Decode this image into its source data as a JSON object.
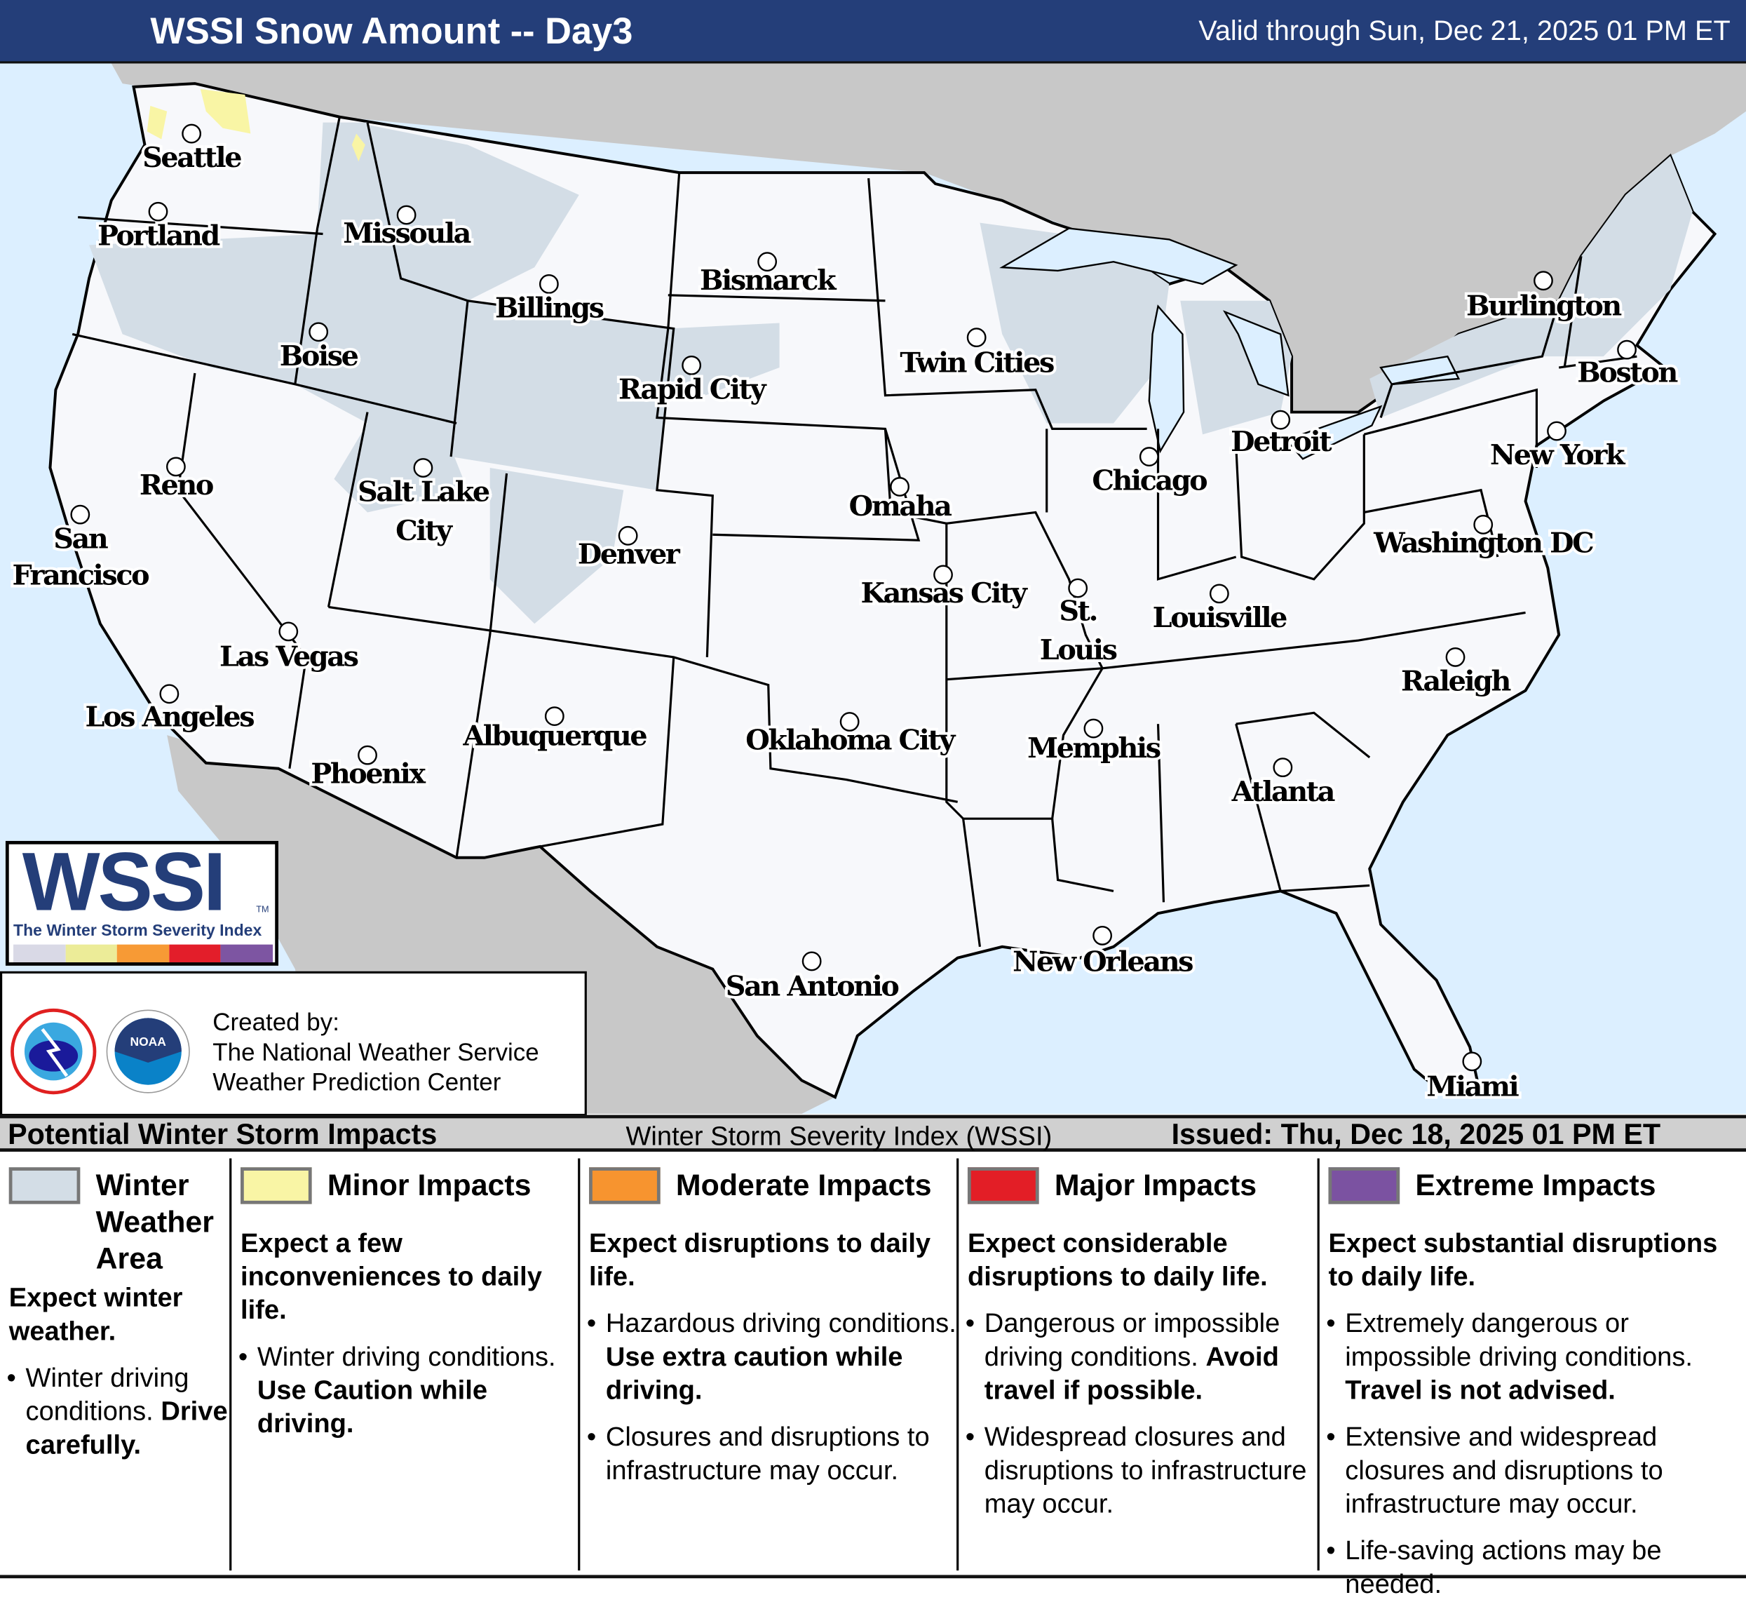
{
  "header": {
    "title": "WSSI Snow Amount -- Day3",
    "valid": "Valid through Sun, Dec 21, 2025 01 PM ET"
  },
  "colors": {
    "header_bg": "#243e79",
    "ocean": "#dcefff",
    "neighbor_land": "#c8c8c8",
    "us_land": "#f7f8fb",
    "winter_weather_area": "#d3dde6",
    "minor": "#f9f5a5",
    "moderate": "#f7942f",
    "major": "#e31e26",
    "extreme": "#7b52a1"
  },
  "cities": [
    "Seattle",
    "Portland",
    "Missoula",
    "Billings",
    "Bismarck",
    "Boise",
    "Rapid City",
    "Twin Cities",
    "Burlington",
    "Boston",
    "Reno",
    "Salt Lake City",
    "San Francisco",
    "Detroit",
    "New York",
    "Chicago",
    "Omaha",
    "Denver",
    "Washington DC",
    "Kansas City",
    "St. Louis",
    "Louisville",
    "Las Vegas",
    "Raleigh",
    "Los Angeles",
    "Oklahoma City",
    "Albuquerque",
    "Memphis",
    "Phoenix",
    "Atlanta",
    "New Orleans",
    "San Antonio",
    "Miami"
  ],
  "logo": {
    "wordmark": "WSSI",
    "tm": "TM",
    "subtitle": "The Winter Storm Severity Index",
    "bar_colors": [
      "#d9d9e6",
      "#ecec98",
      "#f79a35",
      "#e31e2a",
      "#7d55a2"
    ]
  },
  "credit": {
    "line1": "Created by:",
    "line2": "The National Weather Service",
    "line3": "Weather Prediction Center",
    "nws_logo_text": "NATIONAL WEATHER SERVICE",
    "noaa_logo_text": "NOAA"
  },
  "legend": {
    "title": "Potential Winter Storm Impacts",
    "subtitle": "Winter Storm Severity Index (WSSI)",
    "issued": "Issued: Thu, Dec 18, 2025 01 PM ET",
    "columns": [
      {
        "title": "Winter Weather Area",
        "color": "#d3dde6",
        "headline": "Expect winter weather.",
        "bullets": [
          {
            "text": "Winter driving conditions. ",
            "bold": "Drive carefully."
          }
        ]
      },
      {
        "title": "Minor Impacts",
        "color": "#f9f5a5",
        "headline": "Expect a few inconveniences to daily life.",
        "bullets": [
          {
            "text": "Winter driving conditions. ",
            "bold": "Use Caution while driving."
          }
        ]
      },
      {
        "title": "Moderate Impacts",
        "color": "#f7942f",
        "headline": "Expect disruptions to daily life.",
        "bullets": [
          {
            "text": "Hazardous driving conditions. ",
            "bold": "Use extra caution while driving."
          },
          {
            "text": "Closures and disruptions to infrastructure may occur.",
            "bold": ""
          }
        ]
      },
      {
        "title": "Major Impacts",
        "color": "#e31e26",
        "headline": "Expect considerable disruptions to daily life.",
        "bullets": [
          {
            "text": "Dangerous or impossible driving conditions. ",
            "bold": "Avoid travel if possible."
          },
          {
            "text": "Widespread closures and disruptions to infrastructure may occur.",
            "bold": ""
          }
        ]
      },
      {
        "title": "Extreme Impacts",
        "color": "#7b52a1",
        "headline": "Expect substantial disruptions to daily life.",
        "bullets": [
          {
            "text": "Extremely dangerous or impossible driving conditions. ",
            "bold": "Travel is not advised."
          },
          {
            "text": "Extensive and widespread closures and disruptions to infrastructure may occur.",
            "bold": ""
          },
          {
            "text": "Life-saving actions may be needed.",
            "bold": ""
          }
        ]
      }
    ]
  }
}
